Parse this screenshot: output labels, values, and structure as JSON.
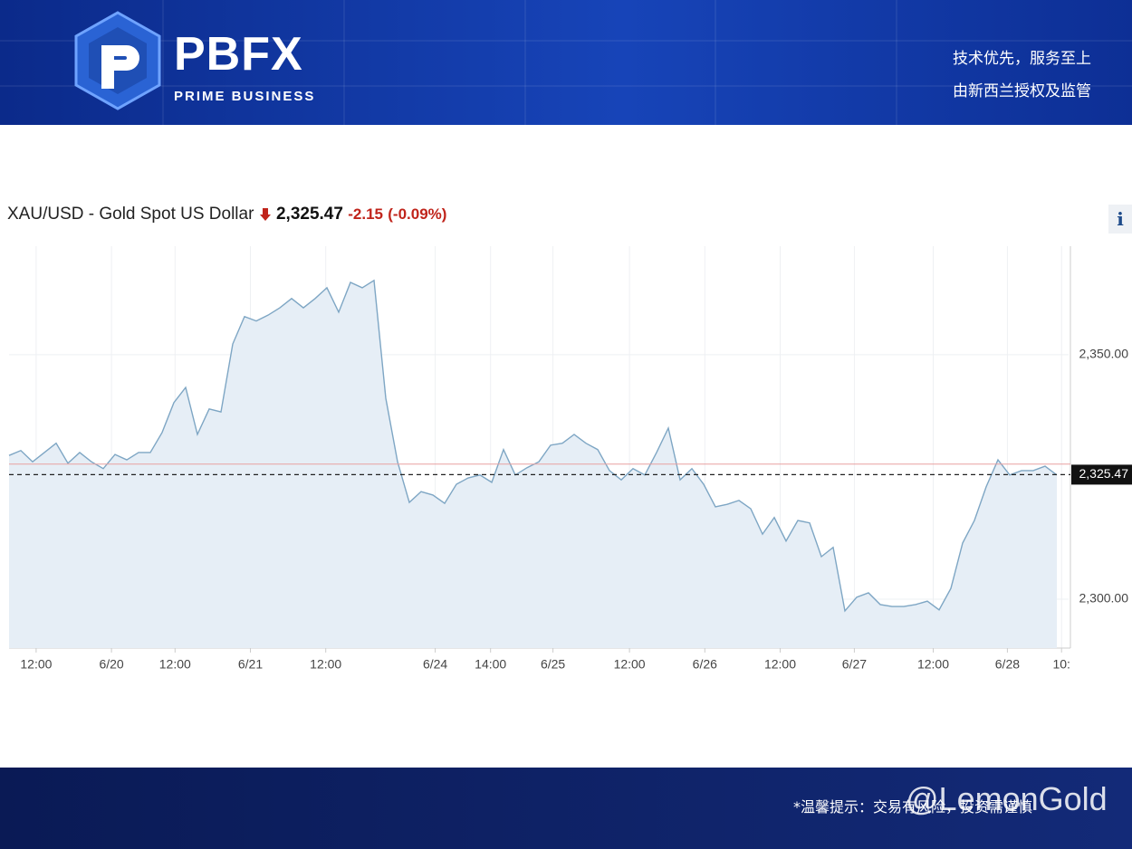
{
  "header": {
    "logo": "PBFX",
    "logo_subtitle": "PRIME BUSINESS",
    "slogans": [
      "技术优先，服务至上",
      "由新西兰授权及监管"
    ]
  },
  "info_button": "i",
  "footer": {
    "note": "*温馨提示：交易有风险，投资需谨慎",
    "watermark": "@LemonGold"
  },
  "chart_data": {
    "type": "area",
    "title": "XAU/USD - Gold Spot US Dollar",
    "last_price": {
      "value": 2325.47,
      "label": "2,325.47"
    },
    "change": -2.15,
    "change_pct": {
      "value": -0.09,
      "label": "(-0.09%)"
    },
    "previous_close": 2327.62,
    "color": "#7ea6c4",
    "fill_color": "#e6eef6",
    "x": [
      0,
      1,
      2,
      3,
      4,
      5,
      6,
      7,
      8,
      9,
      10,
      11,
      12,
      13,
      14,
      15,
      16,
      17,
      18,
      19,
      20,
      21,
      22,
      23,
      24,
      25,
      26,
      27,
      28,
      29,
      30,
      31,
      32,
      33,
      34,
      35,
      36,
      37,
      38,
      39,
      40,
      41,
      42,
      43,
      44,
      45,
      46,
      47,
      48,
      49,
      50,
      51,
      52,
      53,
      54,
      55,
      56,
      57,
      58,
      59,
      60,
      61,
      62,
      63,
      64,
      65,
      66,
      67,
      68,
      69,
      70,
      71,
      72,
      73,
      74,
      75,
      76,
      77,
      78,
      79,
      80,
      81,
      82,
      83,
      84,
      85,
      86,
      87,
      88,
      89
    ],
    "values": [
      2329.4,
      2330.4,
      2328.1,
      2330,
      2331.9,
      2327.8,
      2330,
      2328.1,
      2326.7,
      2329.6,
      2328.5,
      2330,
      2330,
      2334.1,
      2340.2,
      2343.3,
      2333.7,
      2338.9,
      2338.3,
      2352.2,
      2357.8,
      2356.9,
      2358.1,
      2359.6,
      2361.5,
      2359.6,
      2361.5,
      2363.7,
      2358.7,
      2364.8,
      2363.7,
      2365.2,
      2341.1,
      2328.1,
      2319.8,
      2322,
      2321.3,
      2319.6,
      2323.5,
      2324.8,
      2325.4,
      2323.9,
      2330.6,
      2325.4,
      2326.9,
      2328.1,
      2331.5,
      2331.9,
      2333.7,
      2331.9,
      2330.6,
      2326.3,
      2324.4,
      2326.7,
      2325.4,
      2330,
      2335,
      2324.4,
      2326.7,
      2323.5,
      2318.9,
      2319.4,
      2320.2,
      2318.5,
      2313.3,
      2316.7,
      2311.9,
      2316.1,
      2315.6,
      2308.7,
      2310.6,
      2297.6,
      2300.4,
      2301.3,
      2298.9,
      2298.5,
      2298.5,
      2298.9,
      2299.6,
      2297.8,
      2302.2,
      2311.5,
      2316.1,
      2323,
      2328.5,
      2325.4,
      2326.3,
      2326.3,
      2327.2,
      2325.4
    ],
    "xlim": [
      0,
      90
    ],
    "xticks": [
      {
        "value": 2.3,
        "label": "12:00"
      },
      {
        "value": 8.7,
        "label": "6/20"
      },
      {
        "value": 14.1,
        "label": "12:00"
      },
      {
        "value": 20.5,
        "label": "6/21"
      },
      {
        "value": 26.9,
        "label": "12:00"
      },
      {
        "value": 36.2,
        "label": "6/24"
      },
      {
        "value": 40.9,
        "label": "14:00"
      },
      {
        "value": 46.2,
        "label": "6/25"
      },
      {
        "value": 52.7,
        "label": "12:00"
      },
      {
        "value": 59.1,
        "label": "6/26"
      },
      {
        "value": 65.5,
        "label": "12:00"
      },
      {
        "value": 71.8,
        "label": "6/27"
      },
      {
        "value": 78.5,
        "label": "12:00"
      },
      {
        "value": 84.8,
        "label": "6/28"
      },
      {
        "value": 89.4,
        "label": "10:"
      }
    ],
    "ylim": [
      2290,
      2372.2
    ],
    "yticks": [
      {
        "value": 2300,
        "label": "2,300.00"
      },
      {
        "value": 2350,
        "label": "2,350.00"
      }
    ],
    "grid": true
  }
}
